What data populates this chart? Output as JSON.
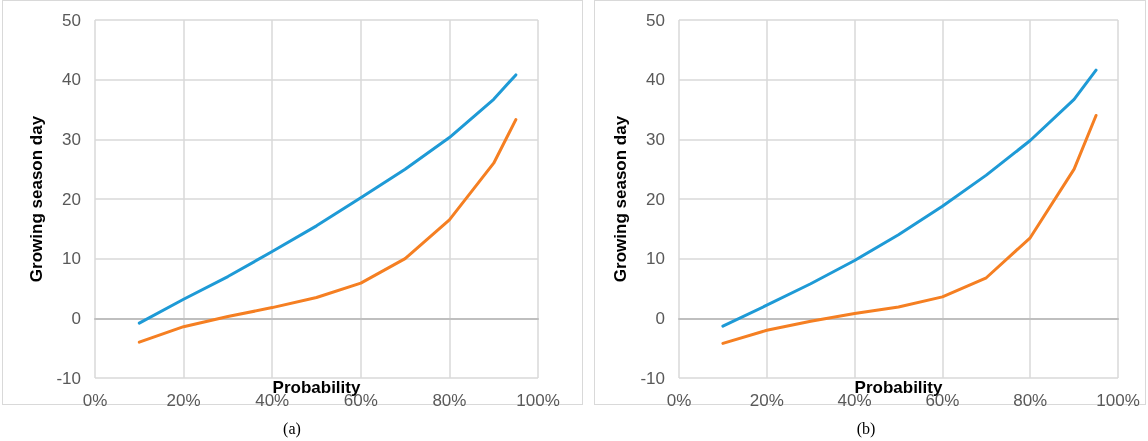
{
  "chart_data": [
    {
      "type": "line",
      "xlabel": "Probability",
      "ylabel": "Growing season day",
      "annotations": [
        "(a)"
      ],
      "x": [
        10,
        20,
        30,
        40,
        50,
        60,
        70,
        80,
        90,
        95
      ],
      "series": [
        {
          "color": "#1e9ad6",
          "values": [
            -0.8,
            3.2,
            7,
            11.2,
            15.5,
            20.2,
            25,
            30.3,
            36.7,
            40.8
          ]
        },
        {
          "color": "#f57f22",
          "values": [
            -4,
            -1.4,
            0.3,
            1.8,
            3.5,
            5.9,
            10,
            16.5,
            26,
            33.3
          ]
        }
      ],
      "xlim": [
        0,
        100
      ],
      "xticks": [
        {
          "value": 0,
          "label": "0%"
        },
        {
          "value": 20,
          "label": "20%"
        },
        {
          "value": 40,
          "label": "40%"
        },
        {
          "value": 60,
          "label": "60%"
        },
        {
          "value": 80,
          "label": "80%"
        },
        {
          "value": 100,
          "label": "100%"
        }
      ],
      "ylim": [
        -10,
        50
      ],
      "yticks": [
        -10,
        0,
        10,
        20,
        30,
        40,
        50
      ],
      "grid": true,
      "marker": "none",
      "line_style": "solid"
    },
    {
      "type": "line",
      "xlabel": "Probability",
      "ylabel": "Growing season day",
      "annotations": [
        "(b)"
      ],
      "x": [
        10,
        20,
        30,
        40,
        50,
        60,
        70,
        80,
        90,
        95
      ],
      "series": [
        {
          "color": "#1e9ad6",
          "values": [
            -1.3,
            2.2,
            5.8,
            9.7,
            14,
            18.8,
            24,
            29.8,
            36.7,
            41.6
          ]
        },
        {
          "color": "#f57f22",
          "values": [
            -4.2,
            -2,
            -0.5,
            0.8,
            1.9,
            3.6,
            6.8,
            13.5,
            25,
            34
          ]
        }
      ],
      "xlim": [
        0,
        100
      ],
      "xticks": [
        {
          "value": 0,
          "label": "0%"
        },
        {
          "value": 20,
          "label": "20%"
        },
        {
          "value": 40,
          "label": "40%"
        },
        {
          "value": 60,
          "label": "60%"
        },
        {
          "value": 80,
          "label": "80%"
        },
        {
          "value": 100,
          "label": "100%"
        }
      ],
      "ylim": [
        -10,
        50
      ],
      "yticks": [
        -10,
        0,
        10,
        20,
        30,
        40,
        50
      ],
      "grid": true,
      "marker": "none",
      "line_style": "solid"
    }
  ]
}
